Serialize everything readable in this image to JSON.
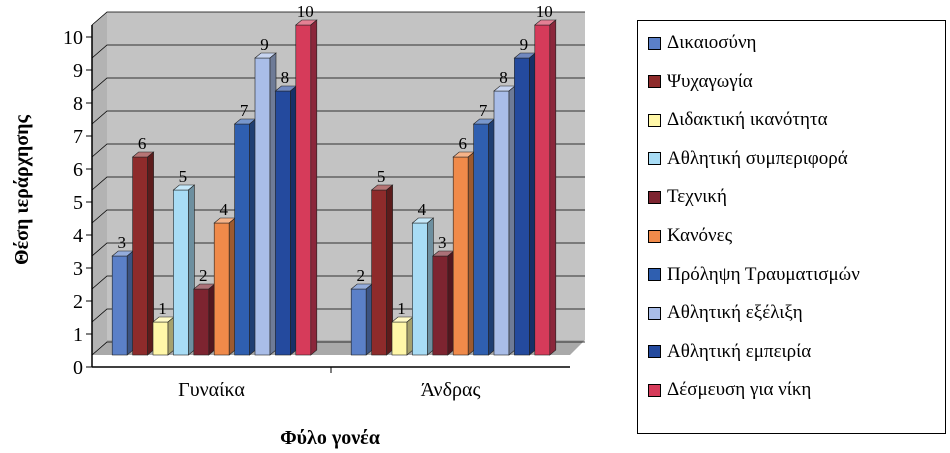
{
  "chart_data": {
    "type": "bar",
    "title": "",
    "xlabel": "Φύλο γονέα",
    "ylabel": "Θέση ιεράρχησης",
    "ylim": [
      0,
      10
    ],
    "yticks": [
      "0",
      "1",
      "2",
      "3",
      "4",
      "5",
      "6",
      "7",
      "8",
      "9",
      "10"
    ],
    "categories": [
      "Γυναίκα",
      "Άνδρας"
    ],
    "grid": true,
    "legend_position": "right",
    "series": [
      {
        "name": "Δικαιοσύνη",
        "color": "#5b80c8",
        "values": [
          3,
          2
        ]
      },
      {
        "name": "Ψυχαγωγία",
        "color": "#8e2b2b",
        "values": [
          6,
          5
        ]
      },
      {
        "name": "Διδακτική ικανότητα",
        "color": "#fff7a8",
        "values": [
          1,
          1
        ]
      },
      {
        "name": "Αθλητική συμπεριφορά",
        "color": "#a8dcf5",
        "values": [
          5,
          4
        ]
      },
      {
        "name": "Τεχνική",
        "color": "#7d2430",
        "values": [
          2,
          3
        ]
      },
      {
        "name": "Κανόνες",
        "color": "#f08a4a",
        "values": [
          4,
          6
        ]
      },
      {
        "name": "Πρόληψη Τραυματισμών",
        "color": "#2f5fb0",
        "values": [
          7,
          7
        ]
      },
      {
        "name": "Αθλητική εξέλιξη",
        "color": "#a9bde8",
        "values": [
          9,
          8
        ]
      },
      {
        "name": "Αθλητική εμπειρία",
        "color": "#244a9e",
        "values": [
          8,
          9
        ]
      },
      {
        "name": "Δέσμευση για νίκη",
        "color": "#d63b5a",
        "values": [
          10,
          10
        ]
      }
    ]
  }
}
